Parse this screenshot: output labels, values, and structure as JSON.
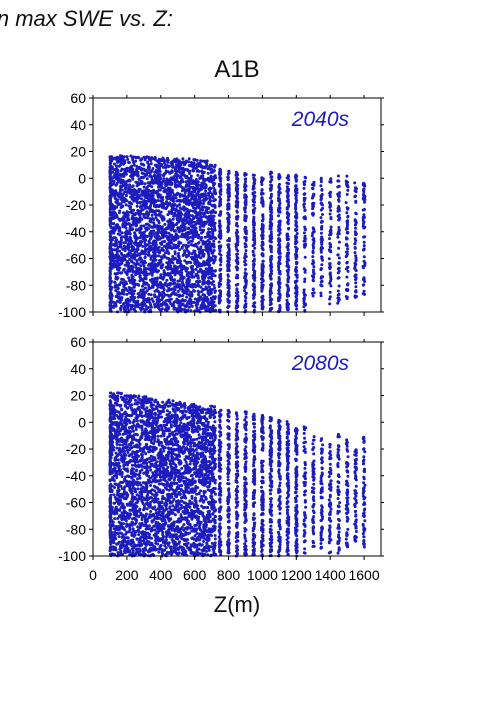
{
  "header": {
    "title": "in max SWE vs. Z:"
  },
  "scenario_label": "A1B",
  "colors": {
    "points": "#1c1cbe",
    "axis": "#000000",
    "period_label": "#1c1cbe"
  },
  "chart_data": [
    {
      "type": "scatter",
      "period": "2040s",
      "xlim": [
        0,
        1700
      ],
      "ylim": [
        -100,
        60
      ],
      "xticks": [
        0,
        200,
        400,
        600,
        800,
        1000,
        1200,
        1400,
        1600
      ],
      "xtick_labels": [],
      "yticks": [
        -100,
        -80,
        -60,
        -40,
        -20,
        0,
        20,
        40,
        60
      ],
      "ytick_labels": [
        "-100",
        "-80",
        "-60",
        "-40",
        "-20",
        "0",
        "20",
        "40",
        "60"
      ],
      "xlabel": "",
      "ylabel": "",
      "grid": false,
      "series": [
        {
          "x": [
            100,
            150,
            200,
            250,
            300,
            350,
            400,
            450,
            500,
            550,
            600,
            650,
            700,
            750,
            800,
            850,
            900,
            950,
            1000,
            1050,
            1100,
            1150,
            1200,
            1250,
            1300,
            1350,
            1400,
            1450,
            1500,
            1550,
            1600
          ],
          "y_min": [
            -100,
            -100,
            -100,
            -100,
            -100,
            -100,
            -100,
            -100,
            -100,
            -100,
            -100,
            -100,
            -100,
            -100,
            -100,
            -100,
            -100,
            -100,
            -100,
            -100,
            -100,
            -100,
            -100,
            -100,
            -90,
            -90,
            -95,
            -95,
            -90,
            -90,
            -90
          ],
          "y_max": [
            17,
            17,
            17,
            16,
            16,
            16,
            16,
            15,
            15,
            15,
            14,
            14,
            10,
            8,
            6,
            5,
            4,
            5,
            4,
            5,
            4,
            3,
            4,
            3,
            0,
            0,
            2,
            3,
            2,
            -2,
            -3
          ]
        }
      ]
    },
    {
      "type": "scatter",
      "period": "2080s",
      "xlim": [
        0,
        1700
      ],
      "ylim": [
        -100,
        60
      ],
      "xticks": [
        0,
        200,
        400,
        600,
        800,
        1000,
        1200,
        1400,
        1600
      ],
      "xtick_labels": [
        "0",
        "200",
        "400",
        "600",
        "800",
        "1000",
        "1200",
        "1400",
        "1600"
      ],
      "yticks": [
        -100,
        -80,
        -60,
        -40,
        -20,
        0,
        20,
        40,
        60
      ],
      "ytick_labels": [
        "-100",
        "-80",
        "-60",
        "-40",
        "-20",
        "0",
        "20",
        "40",
        "60"
      ],
      "xlabel": "Z(m)",
      "ylabel": "",
      "grid": false,
      "series": [
        {
          "x": [
            100,
            150,
            200,
            250,
            300,
            350,
            400,
            450,
            500,
            550,
            600,
            650,
            700,
            750,
            800,
            850,
            900,
            950,
            1000,
            1050,
            1100,
            1150,
            1200,
            1250,
            1300,
            1350,
            1400,
            1450,
            1500,
            1550,
            1600
          ],
          "y_min": [
            -100,
            -100,
            -100,
            -100,
            -100,
            -100,
            -100,
            -100,
            -100,
            -100,
            -100,
            -100,
            -100,
            -100,
            -100,
            -100,
            -100,
            -100,
            -100,
            -100,
            -100,
            -100,
            -100,
            -100,
            -95,
            -95,
            -98,
            -98,
            -95,
            -90,
            -95
          ],
          "y_max": [
            22,
            22,
            21,
            20,
            20,
            18,
            18,
            17,
            16,
            14,
            14,
            12,
            12,
            10,
            10,
            8,
            8,
            7,
            6,
            4,
            2,
            1,
            0,
            0,
            -10,
            -12,
            -15,
            -8,
            -5,
            -20,
            -10
          ]
        }
      ]
    }
  ]
}
